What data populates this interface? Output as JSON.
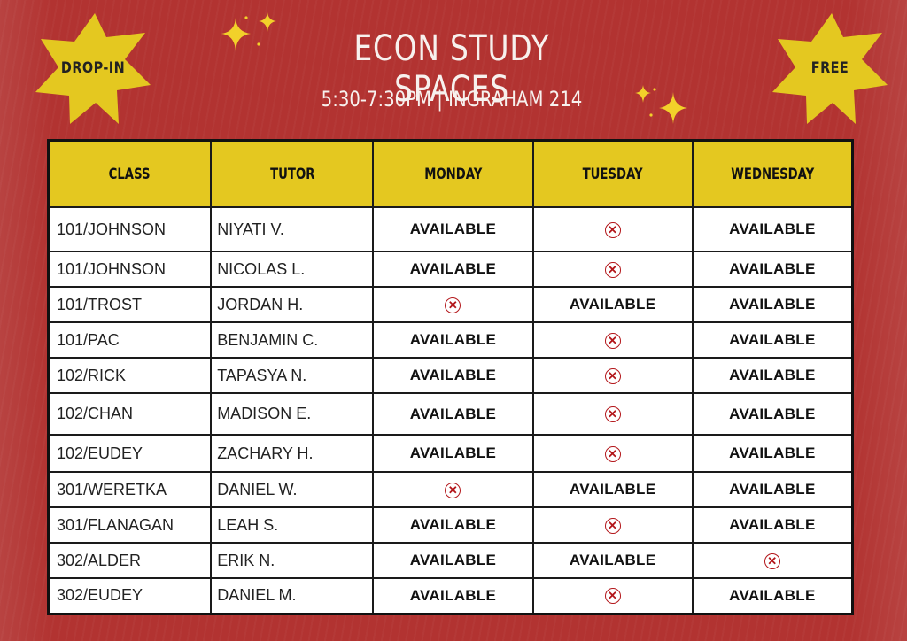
{
  "header": {
    "title": "ECON STUDY SPACES",
    "subtitle": "5:30-7:30PM | INGRAHAM 214",
    "badge_left": "DROP-IN",
    "badge_right": "FREE"
  },
  "colors": {
    "background": "#b23331",
    "accent_yellow": "#e4c820",
    "unavailable_red": "#b3161a"
  },
  "table": {
    "columns": [
      "CLASS",
      "TUTOR",
      "MONDAY",
      "TUESDAY",
      "WEDNESDAY"
    ],
    "unavailable_icon": "circle-x-icon",
    "available_label": "AVAILABLE",
    "rows": [
      {
        "class": "101/JOHNSON",
        "tutor": "NIYATI V.",
        "monday": "AVAILABLE",
        "tuesday": "X",
        "wednesday": "AVAILABLE"
      },
      {
        "class": "101/JOHNSON",
        "tutor": "NICOLAS L.",
        "monday": "AVAILABLE",
        "tuesday": "X",
        "wednesday": "AVAILABLE"
      },
      {
        "class": "101/TROST",
        "tutor": "JORDAN H.",
        "monday": "X",
        "tuesday": "AVAILABLE",
        "wednesday": "AVAILABLE"
      },
      {
        "class": "101/PAC",
        "tutor": "BENJAMIN C.",
        "monday": "AVAILABLE",
        "tuesday": "X",
        "wednesday": "AVAILABLE"
      },
      {
        "class": "102/RICK",
        "tutor": "TAPASYA N.",
        "monday": "AVAILABLE",
        "tuesday": "X",
        "wednesday": "AVAILABLE"
      },
      {
        "class": "102/CHAN",
        "tutor": "MADISON E.",
        "monday": "AVAILABLE",
        "tuesday": "X",
        "wednesday": "AVAILABLE"
      },
      {
        "class": "102/EUDEY",
        "tutor": "ZACHARY H.",
        "monday": "AVAILABLE",
        "tuesday": "X",
        "wednesday": "AVAILABLE"
      },
      {
        "class": "301/WERETKA",
        "tutor": "DANIEL W.",
        "monday": "X",
        "tuesday": "AVAILABLE",
        "wednesday": "AVAILABLE"
      },
      {
        "class": "301/FLANAGAN",
        "tutor": "LEAH S.",
        "monday": "AVAILABLE",
        "tuesday": "X",
        "wednesday": "AVAILABLE"
      },
      {
        "class": "302/ALDER",
        "tutor": "ERIK N.",
        "monday": "AVAILABLE",
        "tuesday": "AVAILABLE",
        "wednesday": "X"
      },
      {
        "class": "302/EUDEY",
        "tutor": "DANIEL M.",
        "monday": "AVAILABLE",
        "tuesday": "X",
        "wednesday": "AVAILABLE"
      }
    ]
  }
}
